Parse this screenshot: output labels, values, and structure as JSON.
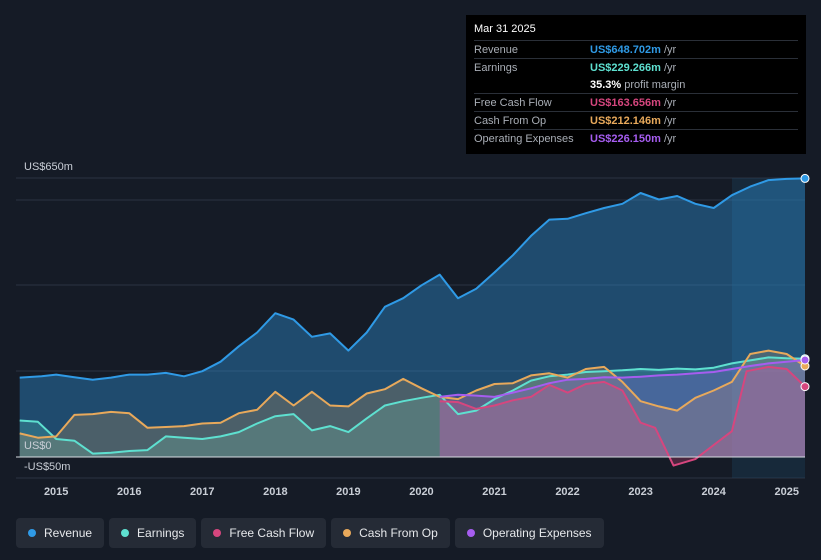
{
  "tooltip": {
    "date": "Mar 31 2025",
    "rows": [
      {
        "name": "Revenue",
        "value": "US$648.702m",
        "unit": "/yr",
        "color": "#2f9ae6"
      },
      {
        "name": "Earnings",
        "value": "US$229.266m",
        "unit": "/yr",
        "color": "#5ee0d0"
      },
      {
        "name": "",
        "value": "35.3%",
        "unit": "profit margin",
        "color": "#ffffff"
      },
      {
        "name": "Free Cash Flow",
        "value": "US$163.656m",
        "unit": "/yr",
        "color": "#d6467e"
      },
      {
        "name": "Cash From Op",
        "value": "US$212.146m",
        "unit": "/yr",
        "color": "#e8a95b"
      },
      {
        "name": "Operating Expenses",
        "value": "US$226.150m",
        "unit": "/yr",
        "color": "#a65df0"
      }
    ]
  },
  "legend": [
    {
      "label": "Revenue",
      "color": "#2f9ae6"
    },
    {
      "label": "Earnings",
      "color": "#5ee0d0"
    },
    {
      "label": "Free Cash Flow",
      "color": "#d6467e"
    },
    {
      "label": "Cash From Op",
      "color": "#e8a95b"
    },
    {
      "label": "Operating Expenses",
      "color": "#a65df0"
    }
  ],
  "chart_data": {
    "type": "area",
    "y_label_top": "US$650m",
    "y_label_zero": "US$0",
    "y_label_bottom": "-US$50m",
    "ylim": [
      -50,
      650
    ],
    "xlim": [
      2014.45,
      2025.25
    ],
    "x_ticks": [
      "2015",
      "2016",
      "2017",
      "2018",
      "2019",
      "2020",
      "2021",
      "2022",
      "2023",
      "2024",
      "2025"
    ],
    "series": [
      {
        "name": "Revenue",
        "color": "#2f9ae6",
        "x": [
          2014.5,
          2014.8,
          2015.0,
          2015.25,
          2015.5,
          2015.75,
          2016.0,
          2016.25,
          2016.5,
          2016.75,
          2017.0,
          2017.25,
          2017.5,
          2017.75,
          2018.0,
          2018.25,
          2018.5,
          2018.75,
          2019.0,
          2019.25,
          2019.5,
          2019.75,
          2020.0,
          2020.25,
          2020.5,
          2020.75,
          2021.0,
          2021.25,
          2021.5,
          2021.75,
          2022.0,
          2022.25,
          2022.5,
          2022.75,
          2023.0,
          2023.25,
          2023.5,
          2023.75,
          2024.0,
          2024.25,
          2024.5,
          2024.75,
          2025.0,
          2025.25
        ],
        "values": [
          185,
          188,
          192,
          186,
          180,
          185,
          192,
          192,
          196,
          188,
          200,
          222,
          258,
          290,
          335,
          320,
          280,
          288,
          248,
          290,
          350,
          370,
          400,
          425,
          370,
          392,
          430,
          470,
          515,
          553,
          555,
          568,
          580,
          590,
          615,
          600,
          608,
          590,
          580,
          610,
          630,
          645,
          648,
          649
        ]
      },
      {
        "name": "Earnings",
        "color": "#5ee0d0",
        "x": [
          2014.5,
          2014.75,
          2015.0,
          2015.25,
          2015.5,
          2015.75,
          2016.0,
          2016.25,
          2016.5,
          2016.75,
          2017.0,
          2017.25,
          2017.5,
          2017.75,
          2018.0,
          2018.25,
          2018.5,
          2018.75,
          2019.0,
          2019.25,
          2019.5,
          2019.75,
          2020.0,
          2020.25,
          2020.5,
          2020.75,
          2021.0,
          2021.25,
          2021.5,
          2021.75,
          2022.0,
          2022.25,
          2022.5,
          2022.75,
          2023.0,
          2023.25,
          2023.5,
          2023.75,
          2024.0,
          2024.25,
          2024.5,
          2024.75,
          2025.0,
          2025.25
        ],
        "values": [
          85,
          82,
          42,
          38,
          8,
          10,
          14,
          16,
          48,
          45,
          42,
          48,
          58,
          78,
          95,
          100,
          62,
          72,
          58,
          90,
          120,
          130,
          138,
          145,
          100,
          108,
          135,
          155,
          178,
          188,
          192,
          198,
          200,
          202,
          205,
          203,
          206,
          204,
          208,
          218,
          225,
          232,
          230,
          229
        ]
      },
      {
        "name": "Free Cash Flow",
        "color": "#d6467e",
        "x": [
          2020.25,
          2020.5,
          2020.75,
          2021.0,
          2021.25,
          2021.5,
          2021.75,
          2022.0,
          2022.25,
          2022.5,
          2022.75,
          2023.0,
          2023.2,
          2023.45,
          2023.75,
          2024.0,
          2024.25,
          2024.45,
          2024.75,
          2025.0,
          2025.25
        ],
        "values": [
          130,
          128,
          112,
          120,
          132,
          140,
          168,
          150,
          170,
          175,
          155,
          80,
          68,
          -20,
          -5,
          28,
          60,
          200,
          210,
          205,
          164
        ]
      },
      {
        "name": "Cash From Op",
        "color": "#e8a95b",
        "x": [
          2014.5,
          2014.75,
          2015.0,
          2015.25,
          2015.5,
          2015.75,
          2016.0,
          2016.25,
          2016.5,
          2016.75,
          2017.0,
          2017.25,
          2017.5,
          2017.75,
          2018.0,
          2018.25,
          2018.5,
          2018.75,
          2019.0,
          2019.25,
          2019.5,
          2019.75,
          2020.0,
          2020.25,
          2020.5,
          2020.75,
          2021.0,
          2021.25,
          2021.5,
          2021.75,
          2022.0,
          2022.25,
          2022.5,
          2022.75,
          2023.0,
          2023.25,
          2023.5,
          2023.75,
          2024.0,
          2024.25,
          2024.5,
          2024.75,
          2025.0,
          2025.25
        ],
        "values": [
          55,
          45,
          48,
          98,
          100,
          105,
          102,
          68,
          70,
          72,
          78,
          80,
          102,
          110,
          152,
          120,
          152,
          120,
          118,
          148,
          158,
          182,
          160,
          140,
          135,
          155,
          170,
          172,
          190,
          195,
          185,
          205,
          210,
          175,
          130,
          118,
          108,
          138,
          155,
          175,
          240,
          248,
          240,
          212
        ]
      },
      {
        "name": "Operating Expenses",
        "color": "#a65df0",
        "x": [
          2020.25,
          2020.5,
          2020.75,
          2021.0,
          2021.25,
          2021.5,
          2021.75,
          2022.0,
          2022.25,
          2022.5,
          2022.75,
          2023.0,
          2023.25,
          2023.5,
          2023.75,
          2024.0,
          2024.25,
          2024.5,
          2024.75,
          2025.0,
          2025.25
        ],
        "values": [
          140,
          145,
          143,
          140,
          150,
          160,
          172,
          180,
          182,
          186,
          185,
          187,
          190,
          192,
          195,
          198,
          205,
          212,
          218,
          222,
          226
        ]
      }
    ]
  }
}
